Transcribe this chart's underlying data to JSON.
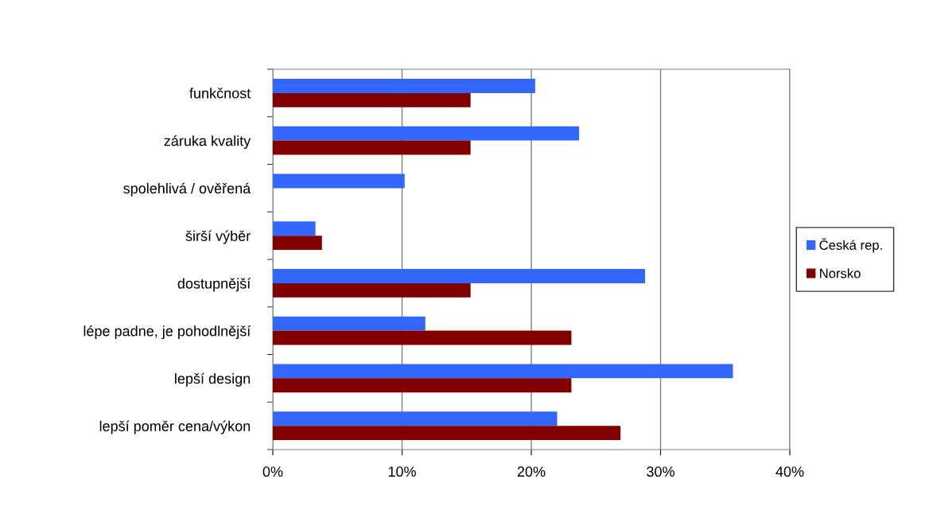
{
  "chart_data": {
    "type": "bar",
    "orientation": "horizontal",
    "categories": [
      "funkčnost",
      "záruka kvality",
      "spolehlivá / ověřená",
      "širší výběr",
      "dostupnější",
      "lépe padne, je pohodlnější",
      "lepší design",
      "lepší poměr cena/výkon"
    ],
    "series": [
      {
        "name": "Česká rep.",
        "color": "#3366ff",
        "values": [
          20.3,
          23.7,
          10.2,
          3.3,
          28.8,
          11.8,
          35.6,
          22.0
        ]
      },
      {
        "name": "Norsko",
        "color": "#800000",
        "values": [
          15.3,
          15.3,
          0,
          3.8,
          15.3,
          23.1,
          23.1,
          26.9
        ]
      }
    ],
    "xlim": [
      0,
      40
    ],
    "xticks": [
      {
        "value": 0,
        "label": "0%"
      },
      {
        "value": 10,
        "label": "10%"
      },
      {
        "value": 20,
        "label": "20%"
      },
      {
        "value": 30,
        "label": "30%"
      },
      {
        "value": 40,
        "label": "40%"
      }
    ],
    "grid": "x",
    "legend": "right"
  }
}
